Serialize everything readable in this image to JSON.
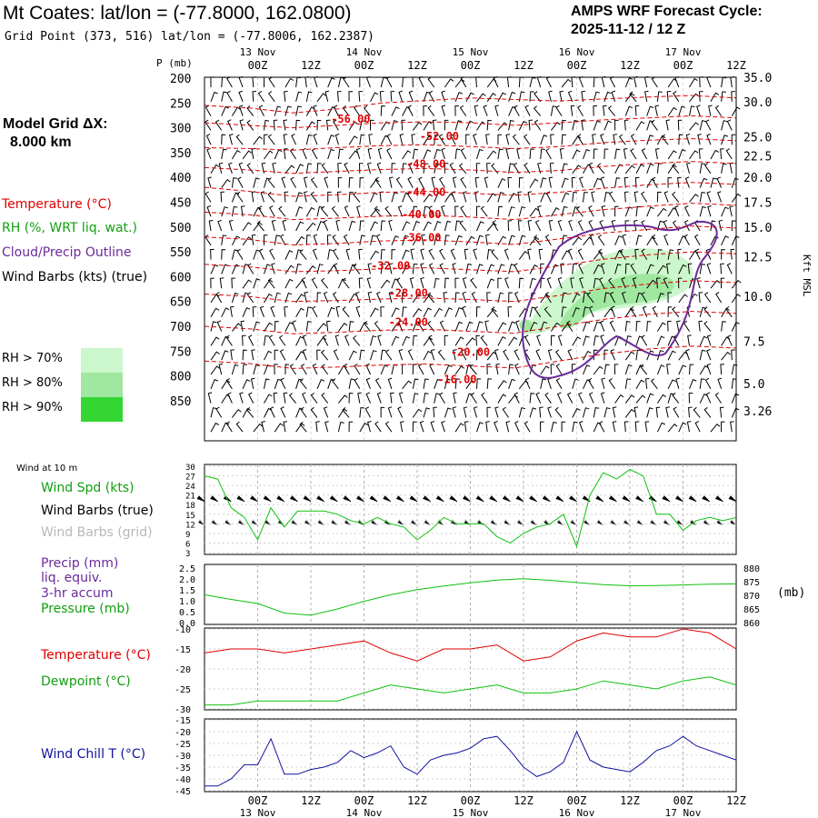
{
  "header": {
    "title": "Mt Coates:  lat/lon = (-77.8000, 162.0800)",
    "grid_point": "Grid Point (373, 516) lat/lon = (-77.8006, 162.2387)",
    "cycle_line1": "AMPS WRF Forecast Cycle:",
    "cycle_line2": "2025-11-12 / 12  Z"
  },
  "model_grid": {
    "label": "Model Grid ΔX:",
    "value": "8.000 km"
  },
  "legend_upper": {
    "temperature": "Temperature (°C)",
    "rh": "RH (%, WRT liq. wat.)",
    "cloud": "Cloud/Precip Outline",
    "wind": "Wind Barbs (kts) (true)",
    "rh70": "RH > 70%",
    "rh80": "RH > 80%",
    "rh90": "RH > 90%"
  },
  "colors": {
    "temp": "#e00000",
    "rh70": "#ccf7cc",
    "rh80": "#a0e8a0",
    "rh90": "#33d633",
    "cloud": "#6a2a9a",
    "green_line": "#10c010",
    "wind_chill": "#1010a0",
    "grey_barb": "#b8b8b8"
  },
  "time_axis": {
    "day_labels": [
      {
        "t": 12,
        "label": "13 Nov"
      },
      {
        "t": 36,
        "label": "14 Nov"
      },
      {
        "t": 60,
        "label": "15 Nov"
      },
      {
        "t": 84,
        "label": "16 Nov"
      },
      {
        "t": 108,
        "label": "17 Nov"
      }
    ],
    "hour_labels": [
      {
        "t": 12,
        "label": "00Z"
      },
      {
        "t": 24,
        "label": "12Z"
      },
      {
        "t": 36,
        "label": "00Z"
      },
      {
        "t": 48,
        "label": "12Z"
      },
      {
        "t": 60,
        "label": "00Z"
      },
      {
        "t": 72,
        "label": "12Z"
      },
      {
        "t": 84,
        "label": "00Z"
      },
      {
        "t": 96,
        "label": "12Z"
      },
      {
        "t": 108,
        "label": "00Z"
      },
      {
        "t": 120,
        "label": "12Z"
      }
    ]
  },
  "chart_data": [
    {
      "type": "heatmap",
      "name": "Time-height cross section",
      "x_range_hours": [
        0,
        120
      ],
      "ylabel": "P (mb)",
      "y_pressure_ticks": [
        200,
        250,
        300,
        350,
        400,
        450,
        500,
        550,
        600,
        650,
        700,
        750,
        800,
        850
      ],
      "right_ylabel": "Kft MSL",
      "right_ticks": [
        {
          "p": 198,
          "label": "35.0"
        },
        {
          "p": 248,
          "label": "30.0"
        },
        {
          "p": 318,
          "label": "25.0"
        },
        {
          "p": 357,
          "label": "22.5"
        },
        {
          "p": 400,
          "label": "20.0"
        },
        {
          "p": 450,
          "label": "17.5"
        },
        {
          "p": 500,
          "label": "15.0"
        },
        {
          "p": 560,
          "label": "12.5"
        },
        {
          "p": 640,
          "label": "10.0"
        },
        {
          "p": 730,
          "label": "7.5"
        },
        {
          "p": 815,
          "label": "5.0"
        },
        {
          "p": 870,
          "label": "3.26"
        }
      ],
      "temperature_contours": [
        {
          "value": -56,
          "label": "-56.00",
          "p": [
            255,
            260,
            270,
            262,
            250,
            245,
            240,
            243,
            246,
            242,
            238,
            235,
            240
          ]
        },
        {
          "value": -52,
          "label": "-52.00",
          "p": [
            290,
            295,
            300,
            295,
            290,
            288,
            290,
            295,
            290,
            284,
            280,
            276,
            280
          ]
        },
        {
          "value": -48,
          "label": "-48.00",
          "p": [
            340,
            342,
            345,
            340,
            336,
            334,
            338,
            342,
            338,
            330,
            325,
            322,
            326
          ]
        },
        {
          "value": -44,
          "label": "-44.00",
          "p": [
            380,
            385,
            392,
            388,
            384,
            382,
            385,
            390,
            386,
            378,
            372,
            368,
            372
          ]
        },
        {
          "value": -40,
          "label": "-40.00",
          "p": [
            420,
            428,
            438,
            435,
            430,
            428,
            432,
            436,
            430,
            422,
            415,
            410,
            414
          ]
        },
        {
          "value": -36,
          "label": "-36.00",
          "p": [
            470,
            475,
            485,
            482,
            478,
            476,
            480,
            485,
            475,
            465,
            458,
            452,
            456
          ]
        },
        {
          "value": -32,
          "label": "-32.00",
          "p": [
            520,
            525,
            536,
            533,
            528,
            526,
            530,
            535,
            524,
            512,
            505,
            498,
            502
          ]
        },
        {
          "value": -28,
          "label": "-28.00",
          "p": [
            575,
            580,
            590,
            588,
            584,
            582,
            586,
            590,
            578,
            565,
            556,
            550,
            554
          ]
        },
        {
          "value": -24,
          "label": "-24.00",
          "p": [
            635,
            640,
            650,
            648,
            645,
            643,
            646,
            650,
            638,
            624,
            615,
            608,
            612
          ]
        },
        {
          "value": -20,
          "label": "-20.00",
          "p": [
            700,
            705,
            715,
            712,
            708,
            706,
            710,
            714,
            700,
            686,
            676,
            670,
            674
          ]
        },
        {
          "value": -16,
          "label": "-16.00",
          "p": [
            770,
            775,
            785,
            782,
            778,
            776,
            780,
            784,
            770,
            756,
            746,
            740,
            744
          ]
        }
      ],
      "contour_labels": [
        {
          "value": "-56.00",
          "t": 33,
          "p": 282
        },
        {
          "value": "-52.00",
          "t": 53,
          "p": 317
        },
        {
          "value": "-48.00",
          "t": 50,
          "p": 373
        },
        {
          "value": "-44.00",
          "t": 50,
          "p": 430
        },
        {
          "value": "-40.00",
          "t": 49,
          "p": 475
        },
        {
          "value": "-36.00",
          "t": 49,
          "p": 521
        },
        {
          "value": "-32.00",
          "t": 42,
          "p": 578
        },
        {
          "value": "-28.00",
          "t": 46,
          "p": 633
        },
        {
          "value": "-24.00",
          "t": 46,
          "p": 692
        },
        {
          "value": "-20.00",
          "t": 60,
          "p": 752
        },
        {
          "value": "-16.00",
          "t": 57,
          "p": 807
        }
      ]
    },
    {
      "type": "line",
      "name": "Wind at 10 m",
      "label_top": "Wind at 10 m",
      "series_labels": [
        "Wind Spd (kts)",
        "Wind Barbs (true)",
        "Wind Barbs (grid)"
      ],
      "x_hours": [
        0,
        3,
        6,
        9,
        12,
        15,
        18,
        21,
        24,
        27,
        30,
        33,
        36,
        39,
        42,
        45,
        48,
        51,
        54,
        57,
        60,
        63,
        66,
        69,
        72,
        75,
        78,
        81,
        84,
        87,
        90,
        93,
        96,
        99,
        102,
        105,
        108,
        111,
        114,
        117,
        120
      ],
      "values": [
        27,
        26,
        17,
        14,
        7,
        17,
        11,
        16,
        16,
        16,
        15,
        13,
        12,
        14,
        12,
        11,
        7,
        10,
        14,
        12,
        12,
        12,
        8,
        6,
        9,
        11,
        12,
        15,
        5,
        21,
        28,
        26,
        29,
        27,
        15,
        15,
        10,
        13,
        14,
        13,
        14
      ],
      "yticks": [
        3,
        6,
        9,
        12,
        15,
        18,
        21,
        24,
        27,
        30
      ],
      "ylim": [
        3,
        30
      ]
    },
    {
      "type": "line",
      "name": "Precip / Pressure",
      "series_labels": [
        "Precip (mm)",
        "liq. equiv.",
        "3-hr accum",
        "Pressure (mb)"
      ],
      "x_hours": [
        0,
        6,
        12,
        18,
        24,
        30,
        36,
        42,
        48,
        54,
        60,
        66,
        72,
        78,
        84,
        90,
        96,
        102,
        108,
        114,
        120
      ],
      "values": [
        870.2,
        868.5,
        867.0,
        863.5,
        862.7,
        865.0,
        867.8,
        870.2,
        872.1,
        873.4,
        874.6,
        875.6,
        876.1,
        875.5,
        874.7,
        873.9,
        873.5,
        873.6,
        873.8,
        874.1,
        874.2
      ],
      "left_ticks": [
        "0.0",
        "0.5",
        "1.0",
        "1.5",
        "2.0",
        "2.5"
      ],
      "right_ticks": [
        860,
        865,
        870,
        875,
        880
      ],
      "right_unit": "(mb)",
      "ylim": [
        860,
        880
      ]
    },
    {
      "type": "line",
      "name": "Temperature / Dewpoint",
      "x_hours": [
        0,
        6,
        12,
        18,
        24,
        30,
        36,
        42,
        48,
        54,
        60,
        66,
        72,
        78,
        84,
        90,
        96,
        102,
        108,
        114,
        120
      ],
      "series": [
        {
          "name": "Temperature (°C)",
          "values": [
            -16,
            -15,
            -15,
            -16,
            -15,
            -14,
            -13,
            -16,
            -18,
            -15,
            -15,
            -14,
            -18,
            -17,
            -13,
            -11,
            -12,
            -12,
            -10,
            -11,
            -15
          ]
        },
        {
          "name": "Dewpoint (°C)",
          "values": [
            -29,
            -29,
            -28,
            -28,
            -28,
            -28,
            -26,
            -24,
            -25,
            -26,
            -25,
            -24,
            -26,
            -26,
            -25,
            -23,
            -24,
            -25,
            -23,
            -22,
            -24
          ]
        }
      ],
      "yticks": [
        -30,
        -25,
        -20,
        -15,
        -10
      ],
      "ylim": [
        -30,
        -10
      ]
    },
    {
      "type": "line",
      "name": "Wind Chill",
      "x_hours": [
        0,
        3,
        6,
        9,
        12,
        15,
        18,
        21,
        24,
        27,
        30,
        33,
        36,
        39,
        42,
        45,
        48,
        51,
        54,
        57,
        60,
        63,
        66,
        69,
        72,
        75,
        78,
        81,
        84,
        87,
        90,
        93,
        96,
        99,
        102,
        105,
        108,
        111,
        114,
        117,
        120
      ],
      "series": [
        {
          "name": "Wind Chill T (°C)",
          "values": [
            -43,
            -43,
            -40,
            -34,
            -34,
            -23,
            -38,
            -38,
            -36,
            -35,
            -33,
            -28,
            -31,
            -29,
            -26,
            -35,
            -38,
            -32,
            -30,
            -29,
            -27,
            -23,
            -22,
            -28,
            -35,
            -39,
            -37,
            -33,
            -20,
            -32,
            -35,
            -36,
            -37,
            -33,
            -28,
            -26,
            -22,
            -26,
            -28,
            -30,
            -32
          ]
        }
      ],
      "yticks": [
        -45,
        -40,
        -35,
        -30,
        -25,
        -20,
        -15
      ],
      "ylim": [
        -45,
        -15
      ]
    }
  ],
  "lower_labels": {
    "wind_top": "Wind at 10 m",
    "wind_spd": "Wind Spd (kts)",
    "barbs_true": "Wind Barbs (true)",
    "barbs_grid": "Wind Barbs (grid)",
    "precip1": "Precip (mm)",
    "precip2": "liq. equiv.",
    "precip3": "3-hr accum",
    "pressure": "Pressure (mb)",
    "pressure_unit": "(mb)",
    "temp": "Temperature (°C)",
    "dew": "Dewpoint (°C)",
    "chill": "Wind Chill T (°C)"
  }
}
